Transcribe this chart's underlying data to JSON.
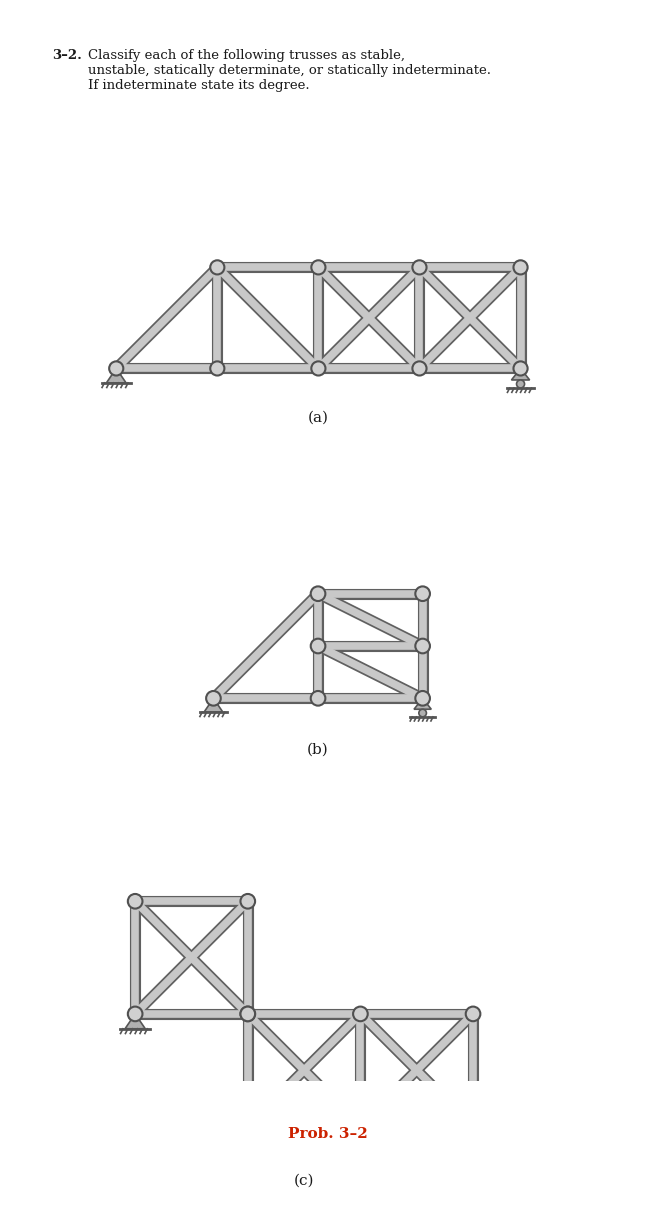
{
  "bg_color": "#ffffff",
  "header_color": "#7ec8e3",
  "text_color": "#1a1a1a",
  "title_bold": "3–2.",
  "title_text": "Classify each of the following trusses as stable,\nunstable, statically determinate, or statically indeterminate.\nIf indeterminate state its degree.",
  "label_a": "(a)",
  "label_b": "(b)",
  "label_c": "(c)",
  "prob_label": "Prob. 3–2",
  "member_color": "#c8c8c8",
  "member_edge": "#606060",
  "joint_color": "#d8d8d8",
  "joint_edge": "#505050",
  "support_color": "#b0b0b0",
  "member_lw": 5.5
}
